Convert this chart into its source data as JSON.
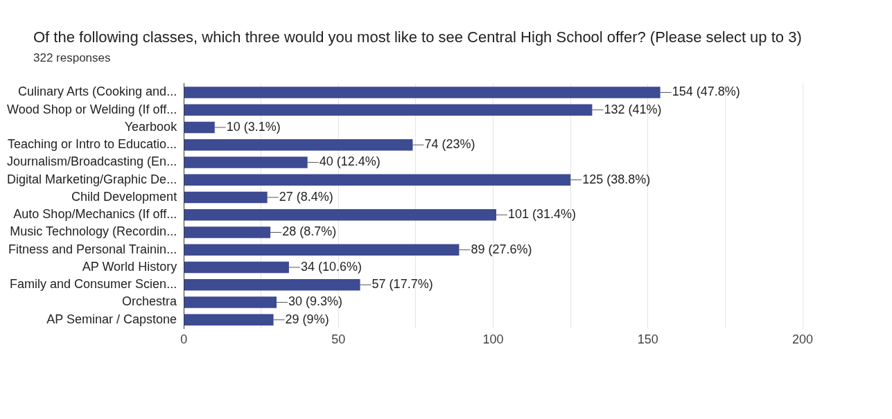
{
  "chart_data": {
    "type": "bar",
    "orientation": "horizontal",
    "title": "Of the following classes, which three would you most like to see Central High School offer? (Please select up to 3)",
    "subtitle": "322 responses",
    "categories": [
      "Culinary Arts (Cooking and...",
      "Wood Shop or Welding (If off...",
      "Yearbook",
      "Teaching or Intro to Educatio...",
      "Journalism/Broadcasting (En...",
      "Digital Marketing/Graphic De...",
      "Child Development",
      "Auto Shop/Mechanics (If off...",
      "Music Technology (Recordin...",
      "Fitness and Personal Trainin...",
      "AP World History",
      "Family and Consumer Scien...",
      "Orchestra",
      "AP Seminar / Capstone"
    ],
    "values": [
      154,
      132,
      10,
      74,
      40,
      125,
      27,
      101,
      28,
      89,
      34,
      57,
      30,
      29
    ],
    "value_labels": [
      "154 (47.8%)",
      "132 (41%)",
      "10 (3.1%)",
      "74 (23%)",
      "40 (12.4%)",
      "125 (38.8%)",
      "27 (8.4%)",
      "101 (31.4%)",
      "28 (8.7%)",
      "89 (27.6%)",
      "34 (10.6%)",
      "57 (17.7%)",
      "30 (9.3%)",
      "29 (9%)"
    ],
    "color": "#3c4b92",
    "xlim": [
      0,
      200
    ],
    "xticks": [
      0,
      {
        "value": 25,
        "label": null
      },
      50,
      {
        "value": 75,
        "label": null
      },
      100,
      {
        "value": 125,
        "label": null
      },
      150,
      {
        "value": 175,
        "label": null
      },
      200
    ],
    "grid": "x",
    "legend": false
  }
}
